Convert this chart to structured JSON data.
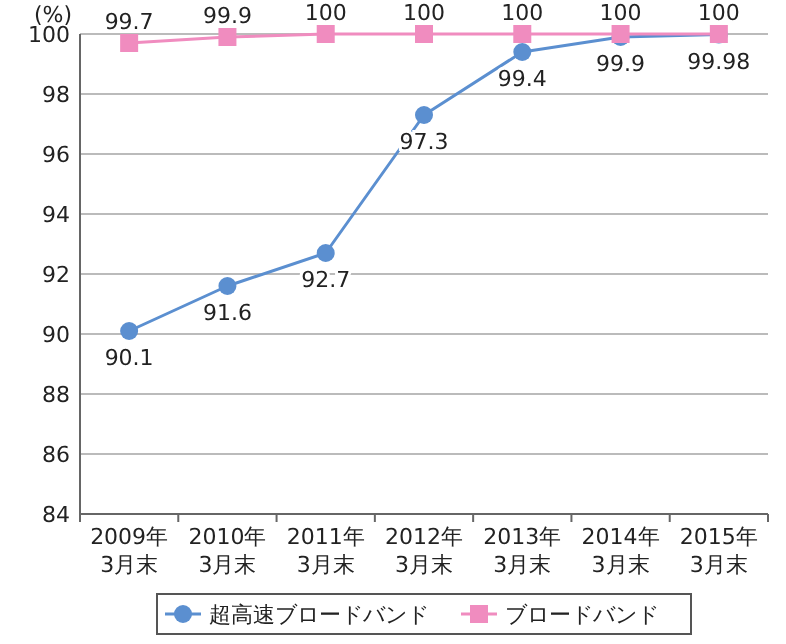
{
  "chart_data": {
    "type": "line",
    "ylabel": "(%)",
    "categories": [
      "2009年\n3月末",
      "2010年\n3月末",
      "2011年\n3月末",
      "2012年\n3月末",
      "2013年\n3月末",
      "2014年\n3月末",
      "2015年\n3月末"
    ],
    "series": [
      {
        "name": "超高速ブロードバンド",
        "color": "#5b8fd0",
        "marker": "circle",
        "values": [
          90.1,
          91.6,
          92.7,
          97.3,
          99.4,
          99.9,
          99.98
        ]
      },
      {
        "name": "ブロードバンド",
        "color": "#f08cbf",
        "marker": "square",
        "values": [
          99.7,
          99.9,
          100,
          100,
          100,
          100,
          100
        ]
      }
    ],
    "ylim": [
      84,
      100
    ],
    "yticks": [
      84,
      86,
      88,
      90,
      92,
      94,
      96,
      98,
      100
    ],
    "grid": "y",
    "data_labels": true,
    "legend": "bottom"
  }
}
